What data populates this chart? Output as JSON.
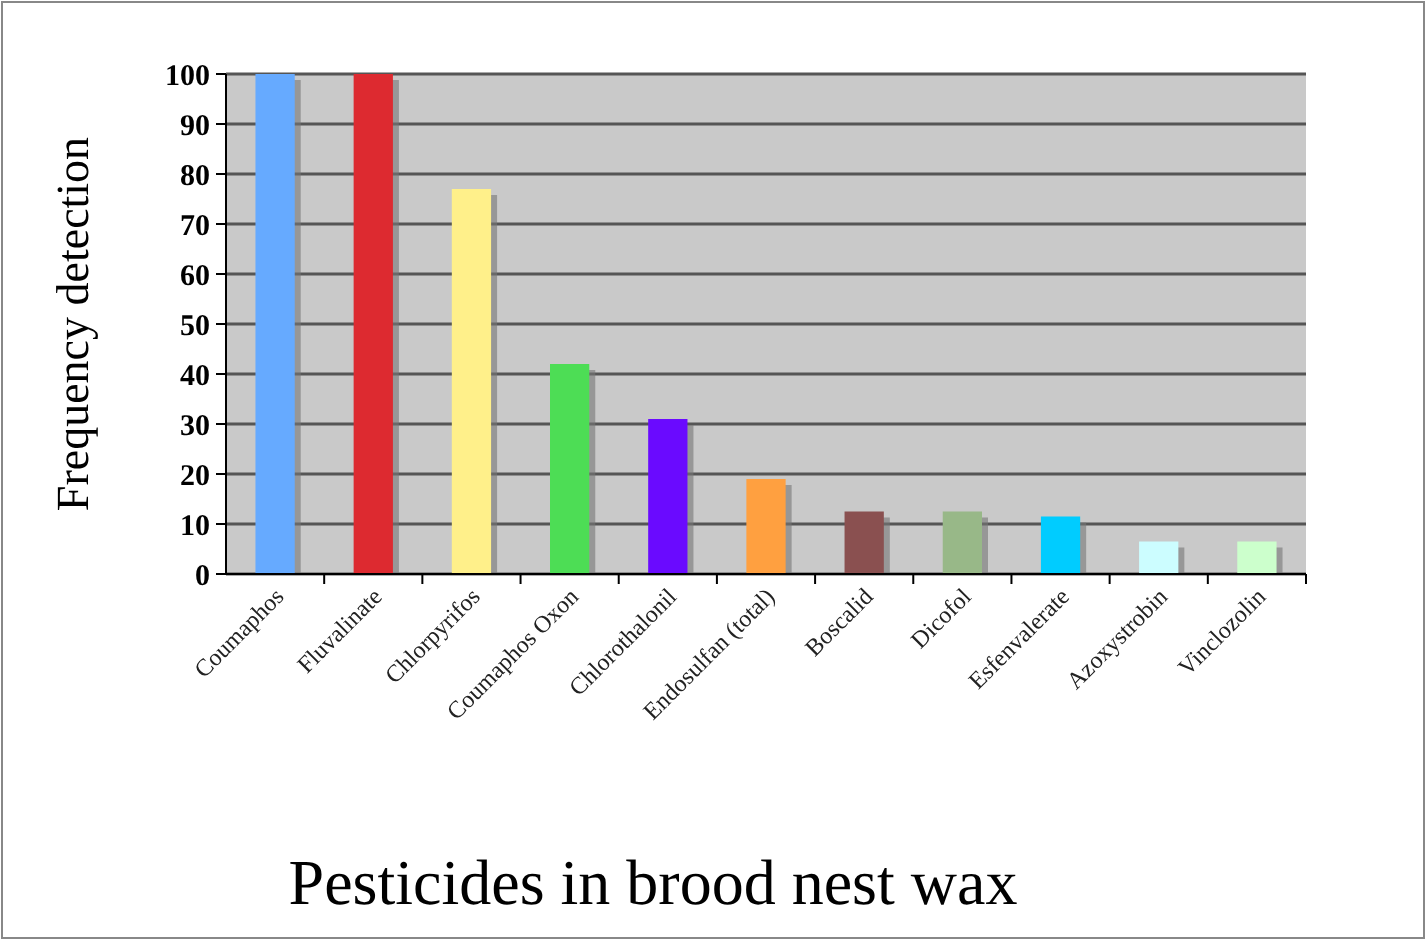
{
  "chart_data": {
    "type": "bar",
    "title": "Pesticides in brood nest wax",
    "ylabel": "Frequency detection",
    "categories": [
      "Coumaphos",
      "Fluvalinate",
      "Chlorpyrifos",
      "Coumaphos Oxon",
      "Chlorothalonil",
      "Endosulfan (total)",
      "Boscalid",
      "Dicofol",
      "Esfenvalerate",
      "Azoxystrobin",
      "Vinclozolin"
    ],
    "values": [
      100,
      100,
      77,
      42,
      31,
      19,
      12.5,
      12.5,
      11.5,
      6.5,
      6.5
    ],
    "colors": [
      "#66aaff",
      "#dd2a30",
      "#fff08a",
      "#4ddd55",
      "#6a0aff",
      "#ffa040",
      "#8a5050",
      "#98b888",
      "#00ccff",
      "#ccfdff",
      "#ccffcc"
    ],
    "ylim": [
      0,
      100
    ],
    "yticks": [
      0,
      10,
      20,
      30,
      40,
      50,
      60,
      70,
      80,
      90,
      100
    ],
    "grid": "y"
  }
}
